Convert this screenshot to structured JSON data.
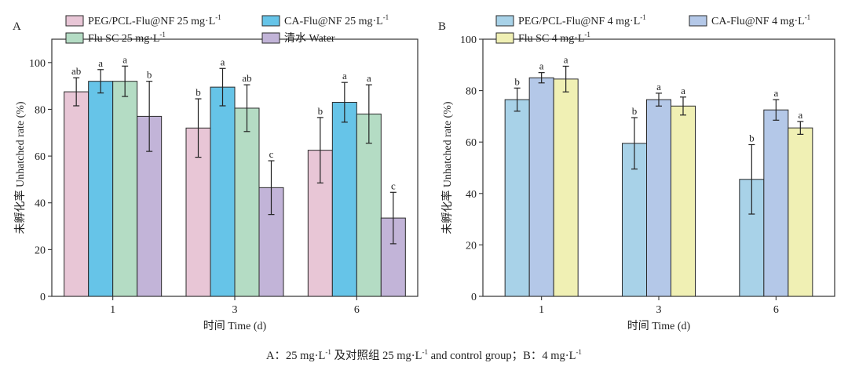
{
  "chart_data": [
    {
      "type": "bar",
      "panel_label": "A",
      "categories": [
        "1",
        "3",
        "6"
      ],
      "xlabel": "时间 Time (d)",
      "ylabel": "未孵化率 Unhatched rate (%)",
      "ylim": [
        0,
        110
      ],
      "yticks": [
        "0",
        "20",
        "40",
        "60",
        "80",
        "100"
      ],
      "legend_cols": 2,
      "series": [
        {
          "name": "PEG/PCL-Flu@NF 25 mg·L",
          "sup": "-1",
          "color": "#e8c6d6",
          "values": [
            87.5,
            72,
            62.5
          ],
          "errors": [
            6,
            12.5,
            14
          ],
          "letters": [
            "ab",
            "b",
            "b"
          ]
        },
        {
          "name": "CA-Flu@NF 25 mg·L",
          "sup": "-1",
          "color": "#66c4e8",
          "values": [
            92,
            89.5,
            83
          ],
          "errors": [
            5,
            8,
            8.5
          ],
          "letters": [
            "a",
            "a",
            "a"
          ]
        },
        {
          "name": "Flu SC 25 mg·L",
          "sup": "-1",
          "color": "#b4dcc4",
          "values": [
            92,
            80.5,
            78
          ],
          "errors": [
            6.5,
            10,
            12.5
          ],
          "letters": [
            "a",
            "ab",
            "a"
          ]
        },
        {
          "name": "清水 Water",
          "sup": "",
          "color": "#c2b4d8",
          "values": [
            77,
            46.5,
            33.5
          ],
          "errors": [
            15,
            11.5,
            11
          ],
          "letters": [
            "b",
            "c",
            "c"
          ]
        }
      ]
    },
    {
      "type": "bar",
      "panel_label": "B",
      "categories": [
        "1",
        "3",
        "6"
      ],
      "xlabel": "时间 Time (d)",
      "ylabel": "未孵化率 Unhatched rate (%)",
      "ylim": [
        0,
        100
      ],
      "yticks": [
        "0",
        "20",
        "40",
        "60",
        "80",
        "100"
      ],
      "legend_cols": 2,
      "series": [
        {
          "name": "PEG/PCL-Flu@NF 4 mg·L",
          "sup": "-1",
          "color": "#a8d2e8",
          "values": [
            76.5,
            59.5,
            45.5
          ],
          "errors": [
            4.5,
            10,
            13.5
          ],
          "letters": [
            "b",
            "b",
            "b"
          ]
        },
        {
          "name": "CA-Flu@NF 4 mg·L",
          "sup": "-1",
          "color": "#b4c8e8",
          "values": [
            85,
            76.5,
            72.5
          ],
          "errors": [
            2,
            2.5,
            4
          ],
          "letters": [
            "a",
            "a",
            "a"
          ]
        },
        {
          "name": "Flu SC 4 mg·L",
          "sup": "-1",
          "color": "#f0f0b4",
          "values": [
            84.5,
            74,
            65.5
          ],
          "errors": [
            5,
            3.5,
            2.5
          ],
          "letters": [
            "a",
            "a",
            "a"
          ]
        }
      ]
    }
  ],
  "caption": {
    "part1": "A：25 mg·L",
    "sup1": "-1",
    "part2": " 及对照组 25 mg·L",
    "sup2": "-1",
    "part3": " and control group；B：4 mg·L",
    "sup3": "-1"
  }
}
